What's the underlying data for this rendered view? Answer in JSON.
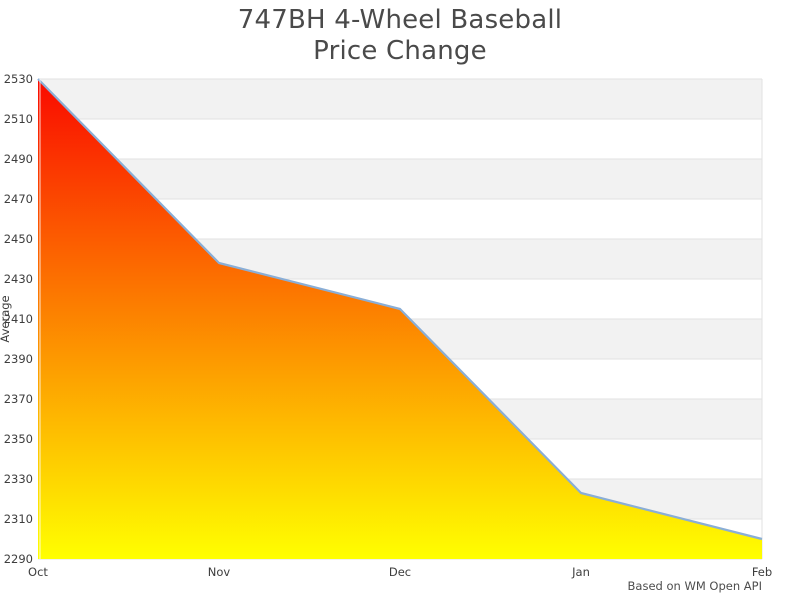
{
  "title": {
    "line1": "747BH 4-Wheel Baseball",
    "line2": "Price Change"
  },
  "footer": {
    "text": "Based on WM Open API"
  },
  "chart_data": {
    "type": "area",
    "title": "747BH 4-Wheel Baseball Price Change",
    "x": [
      "Oct",
      "Nov",
      "Dec",
      "Jan",
      "Feb"
    ],
    "series": [
      {
        "name": "Average",
        "values": [
          2530,
          2438,
          2415,
          2323,
          2300
        ]
      }
    ],
    "xlabel": "",
    "ylabel": "Average",
    "ylim": [
      2290,
      2530
    ],
    "yticks": [
      2290,
      2310,
      2330,
      2350,
      2370,
      2390,
      2410,
      2430,
      2450,
      2470,
      2490,
      2510,
      2530
    ],
    "legend": "none",
    "grid": "horizontal-bands-alternating",
    "colors": {
      "fill_top": "#fa0a00",
      "fill_bottom": "#ffff00",
      "line": "#8aaed6",
      "band_gray": "#f2f2f2",
      "band_white": "#ffffff",
      "gridline": "#e2e2e2",
      "tick_text": "#3d3d3d",
      "title_text": "#4a4a4a"
    }
  }
}
